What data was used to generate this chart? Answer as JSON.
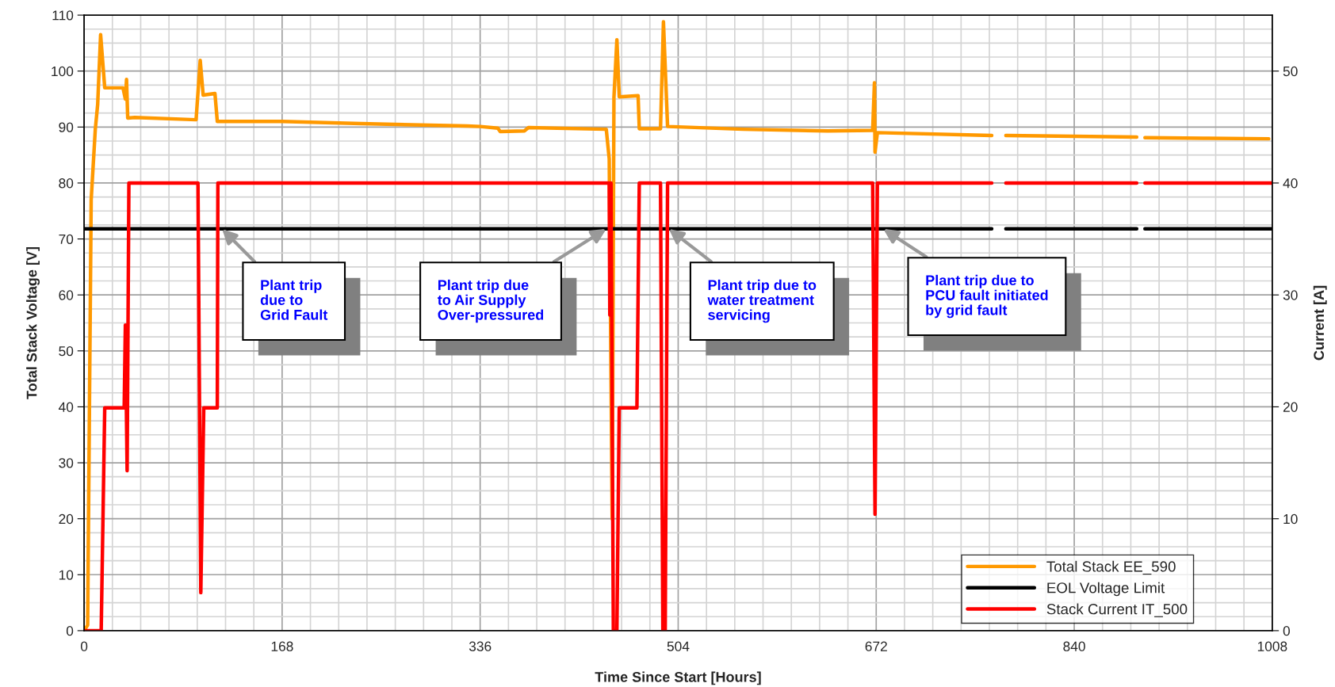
{
  "chart_data": {
    "type": "line",
    "xlabel": "Time Since Start [Hours]",
    "ylabel": "Total Stack Voltage [V]",
    "y2label": "Current [A]",
    "xlim": [
      0,
      1008
    ],
    "xticks": [
      0,
      168,
      336,
      504,
      672,
      840,
      1008
    ],
    "ylim": [
      0,
      110
    ],
    "yticks": [
      0,
      10,
      20,
      30,
      40,
      50,
      60,
      70,
      80,
      90,
      100,
      110
    ],
    "y2lim": [
      0,
      55
    ],
    "y2ticks": [
      0,
      10,
      20,
      30,
      40,
      50
    ],
    "grid": true,
    "legend": "bottom right",
    "series": [
      {
        "name": "Total Stack EE_590",
        "color": "#ff9900",
        "x": [
          0,
          3,
          6,
          9.5,
          11.5,
          14,
          17.5,
          33,
          35,
          36,
          37,
          43,
          95,
          98.5,
          101,
          111,
          113,
          168,
          235,
          325,
          336,
          351,
          353,
          373.5,
          377,
          443,
          445.5,
          448,
          449.5,
          452,
          454,
          470,
          471,
          489,
          491.5,
          495,
          559,
          631,
          669,
          670.5,
          671,
          673,
          770,
          776,
          782,
          854,
          893,
          896,
          900,
          950,
          1005
        ],
        "values": [
          0,
          1,
          77,
          89.6,
          94,
          106.5,
          97,
          97,
          95,
          98.5,
          91.6,
          91.7,
          91.3,
          101.9,
          95.7,
          96,
          91,
          91,
          90.6,
          90.2,
          90.1,
          89.8,
          89.2,
          89.3,
          89.9,
          89.6,
          84.3,
          20,
          95.3,
          105.6,
          95.4,
          95.6,
          89.7,
          89.7,
          108.8,
          90.1,
          89.6,
          89.3,
          89.4,
          97.9,
          85.5,
          89,
          88.5,
          null,
          88.5,
          88.3,
          88.2,
          null,
          88.1,
          88,
          87.9
        ]
      },
      {
        "name": "EOL Voltage Limit",
        "color": "#000000",
        "x": [
          0,
          770,
          776,
          782,
          893,
          896,
          900,
          1008
        ],
        "values": [
          71.8,
          71.8,
          null,
          71.8,
          71.8,
          null,
          71.8,
          71.8
        ]
      },
      {
        "name": "Stack Current IT_500",
        "color": "#ff0000",
        "axis": "y2",
        "x": [
          0,
          14.5,
          17.5,
          34,
          35,
          36.5,
          38,
          96.6,
          99,
          101.5,
          113,
          113.5,
          445.5,
          446,
          447,
          449,
          452,
          454,
          469,
          471,
          489,
          491,
          493,
          495,
          669,
          671,
          673,
          770,
          776,
          782,
          893,
          896,
          900,
          1008
        ],
        "values": [
          0,
          0,
          19.9,
          19.9,
          27.3,
          14.3,
          40,
          40,
          3.4,
          19.9,
          19.9,
          40,
          40,
          28.2,
          40,
          0,
          0,
          19.9,
          19.9,
          40,
          40,
          0,
          0,
          40,
          40,
          10.4,
          40,
          40,
          null,
          40,
          40,
          null,
          40,
          40
        ]
      }
    ],
    "annotations": [
      "Plant trip\ndue to\nGrid Fault",
      "Plant trip due\nto Air Supply\nOver-pressured",
      {
        "text": "Plant trip due to\nwater treatment\nservicing",
        "x": 496,
        "y": 71.8
      },
      {
        "text": "Plant trip due to\nPCU fault initiated\nby grid fault",
        "x": 678,
        "y": 71.8
      }
    ]
  }
}
